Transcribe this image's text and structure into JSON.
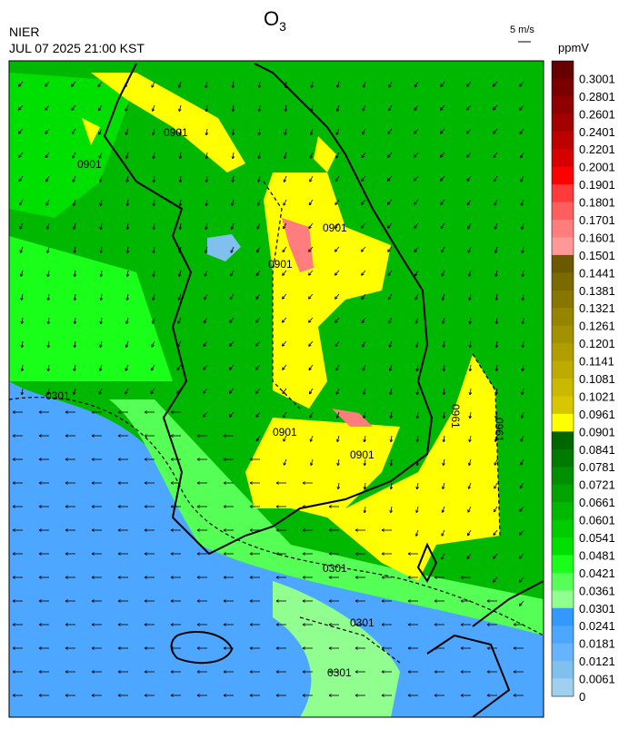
{
  "header": {
    "title": "O",
    "title_sub": "3",
    "agency": "NIER",
    "datetime": "JUL 07 2025 21:00 KST",
    "wind_scale": "5 m/s",
    "unit": "ppmV"
  },
  "colorbar": {
    "labels": [
      "0.3001",
      "0.2801",
      "0.2601",
      "0.2401",
      "0.2201",
      "0.2001",
      "0.1901",
      "0.1801",
      "0.1701",
      "0.1601",
      "0.1501",
      "0.1441",
      "0.1381",
      "0.1321",
      "0.1261",
      "0.1201",
      "0.1141",
      "0.1081",
      "0.1021",
      "0.0961",
      "0.0901",
      "0.0841",
      "0.0781",
      "0.0721",
      "0.0661",
      "0.0601",
      "0.0541",
      "0.0481",
      "0.0421",
      "0.0361",
      "0.0301",
      "0.0241",
      "0.0181",
      "0.0121",
      "0.0061",
      "0"
    ],
    "colors": [
      "#660000",
      "#7a0000",
      "#8f0000",
      "#a30000",
      "#bd0000",
      "#d60000",
      "#ff0000",
      "#ff3a3a",
      "#ff5e5e",
      "#ff7d7d",
      "#ff9999",
      "#6b5a00",
      "#7a6a00",
      "#877700",
      "#958400",
      "#a39100",
      "#b09e00",
      "#bdab00",
      "#cbb800",
      "#d8c600",
      "#ffff00",
      "#006600",
      "#007a00",
      "#008f00",
      "#00a300",
      "#00b800",
      "#00cc00",
      "#00e000",
      "#1aff1a",
      "#55ff55",
      "#90ff90",
      "#3399ff",
      "#4da6ff",
      "#66b3ff",
      "#80c0ee",
      "#a0d0f0"
    ]
  },
  "contour_labels": [
    "0901",
    "0901",
    "0901",
    "0901",
    "0901",
    "0901",
    "0961",
    "0961",
    "0301",
    "0301",
    "0301",
    "0301"
  ]
}
